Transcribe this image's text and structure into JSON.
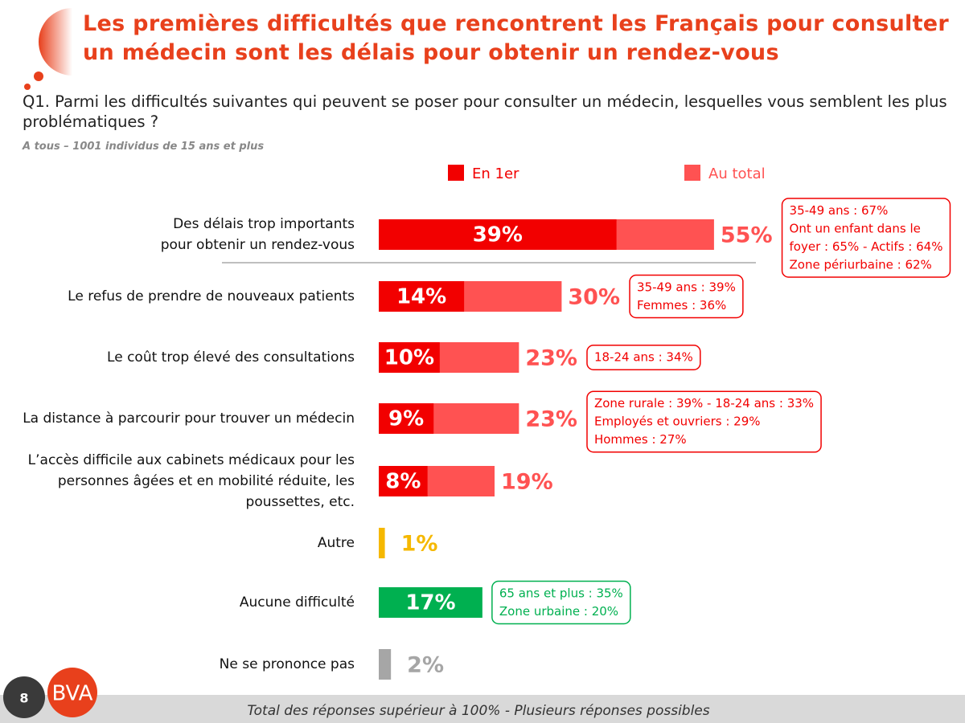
{
  "chart_data": {
    "type": "bar",
    "orientation": "horizontal",
    "title": "Les premières difficultés que rencontrent les Français pour consulter un médecin sont les délais pour obtenir un rendez-vous",
    "subtitle": "Q1. Parmi les difficultés suivantes qui peuvent se poser pour consulter un médecin, lesquelles vous semblent les plus problématiques ?",
    "base": "A tous – 1001 individus de 15 ans et plus",
    "footnote": "Total des réponses supérieur à 100% - Plusieurs réponses possibles",
    "legend": "top",
    "xlim": [
      0,
      100
    ],
    "categories": [
      "Des délais trop importants\npour obtenir un rendez-vous",
      "Le refus de prendre de nouveaux patients",
      "Le coût trop élevé des consultations",
      "La distance à parcourir pour trouver un médecin",
      "L’accès difficile aux cabinets médicaux pour les\npersonnes âgées et en mobilité réduite, les\npoussettes, etc.",
      "Autre",
      "Aucune difficulté",
      "Ne se prononce pas"
    ],
    "series": [
      {
        "name": "En 1er",
        "color": "#f20000",
        "values": [
          39,
          14,
          10,
          9,
          8,
          null,
          null,
          null
        ],
        "value_labels": [
          "39%",
          "14%",
          "10%",
          "9%",
          "8%",
          null,
          null,
          null
        ]
      },
      {
        "name": "Au total",
        "color": "#ff5252",
        "colors": [
          "#ff5252",
          "#ff5252",
          "#ff5252",
          "#ff5252",
          "#ff5252",
          "#f5b800",
          "#00b050",
          "#a6a6a6"
        ],
        "values": [
          55,
          30,
          23,
          23,
          19,
          1,
          17,
          2
        ],
        "value_labels": [
          "55%",
          "30%",
          "23%",
          "23%",
          "19%",
          "1%",
          "17%",
          "2%"
        ]
      }
    ],
    "annotations": [
      [
        "35-49 ans : 67%",
        "Ont un enfant dans le",
        "foyer : 65% - Actifs : 64%",
        "Zone périurbaine : 62%"
      ],
      [
        "35-49 ans : 39%",
        "Femmes : 36%"
      ],
      [
        "18-24 ans : 34%"
      ],
      [
        "Zone rurale : 39% - 18-24 ans : 33%",
        "Employés et ouvriers : 29%",
        "Hommes : 27%"
      ],
      null,
      null,
      [
        "65 ans et plus : 35%",
        "Zone urbaine : 20%"
      ],
      null
    ]
  },
  "page": {
    "number": "8",
    "logo": "BVA"
  }
}
